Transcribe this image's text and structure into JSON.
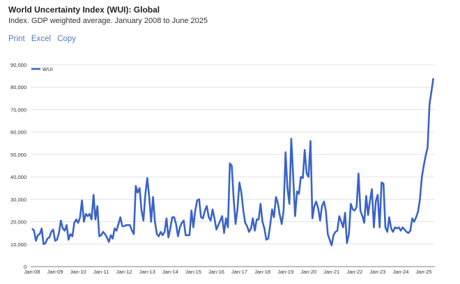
{
  "header": {
    "title": "World Uncertainty Index (WUI): Global",
    "subtitle": "Index. GDP weighted average. January 2008 to June 2025"
  },
  "actions": {
    "print": "Print",
    "excel": "Excel",
    "copy": "Copy"
  },
  "colors": {
    "series": "#3a63c8",
    "grid": "#e3e3e3",
    "link": "#4a7fc1"
  },
  "chart_data": {
    "type": "line",
    "title": "",
    "xlabel": "",
    "ylabel": "",
    "ylim": [
      0,
      90000
    ],
    "grid": true,
    "legend": "top-left",
    "y_ticks": [
      "0",
      "10,000",
      "20,000",
      "30,000",
      "40,000",
      "50,000",
      "60,000",
      "70,000",
      "80,000",
      "90,000"
    ],
    "x_ticks": [
      "Jan-08",
      "Jan-09",
      "Jan-10",
      "Jan-11",
      "Jan-12",
      "Jan-13",
      "Jan-14",
      "Jan-15",
      "Jan-16",
      "Jan-17",
      "Jan-18",
      "Jan-19",
      "Jan-20",
      "Jan-21",
      "Jan-22",
      "Jan-23",
      "Jan-24",
      "Jan-25"
    ],
    "x_start": "Jan-08",
    "x_end": "Jun-25",
    "frequency": "monthly",
    "series": [
      {
        "name": "WUI",
        "values": [
          17000,
          16000,
          11500,
          14000,
          14500,
          17000,
          10000,
          10500,
          12500,
          13000,
          15500,
          16500,
          11500,
          12000,
          15000,
          20500,
          17000,
          16000,
          18500,
          12000,
          14500,
          13500,
          19500,
          21000,
          19500,
          22000,
          29500,
          20000,
          23500,
          22500,
          23500,
          21000,
          32000,
          21000,
          27000,
          13500,
          14000,
          15500,
          14500,
          13000,
          11000,
          14000,
          12500,
          17000,
          16000,
          19000,
          22000,
          18000,
          18000,
          18500,
          18500,
          18500,
          16000,
          14500,
          36000,
          33000,
          35000,
          25000,
          20500,
          32000,
          39500,
          31000,
          20000,
          31000,
          20000,
          14500,
          13500,
          15500,
          14000,
          15500,
          21500,
          13000,
          17000,
          22000,
          22000,
          19000,
          13500,
          17500,
          19500,
          20500,
          14000,
          14000,
          14000,
          25000,
          17500,
          25000,
          29500,
          30000,
          22000,
          21500,
          25000,
          27000,
          22000,
          20500,
          25500,
          21500,
          16500,
          18500,
          20500,
          22500,
          15000,
          21500,
          17500,
          46000,
          45000,
          30000,
          19000,
          26000,
          37500,
          33000,
          25000,
          19500,
          18000,
          15500,
          17000,
          21500,
          16000,
          21000,
          21000,
          28000,
          20000,
          17000,
          12000,
          12500,
          18500,
          25500,
          22000,
          31000,
          28500,
          23000,
          19000,
          25000,
          51000,
          35000,
          28000,
          57000,
          40000,
          22500,
          33500,
          32500,
          40000,
          39500,
          52000,
          41500,
          40000,
          56000,
          21500,
          27000,
          29000,
          26000,
          20500,
          27000,
          29000,
          25000,
          14500,
          12000,
          9500,
          14000,
          15500,
          16000,
          22500,
          20000,
          17500,
          24000,
          10500,
          14500,
          28000,
          25500,
          25000,
          26500,
          41500,
          25000,
          22500,
          19500,
          31500,
          23000,
          29500,
          34500,
          17500,
          29000,
          32000,
          17500,
          37500,
          37000,
          17500,
          15500,
          22000,
          17000,
          15500,
          17500,
          17000,
          17500,
          16000,
          17500,
          16500,
          15500,
          15000,
          16000,
          21500,
          20000,
          22000,
          24500,
          30000,
          40000,
          45000,
          49500,
          53000,
          72500,
          78000,
          84000
        ]
      }
    ]
  }
}
